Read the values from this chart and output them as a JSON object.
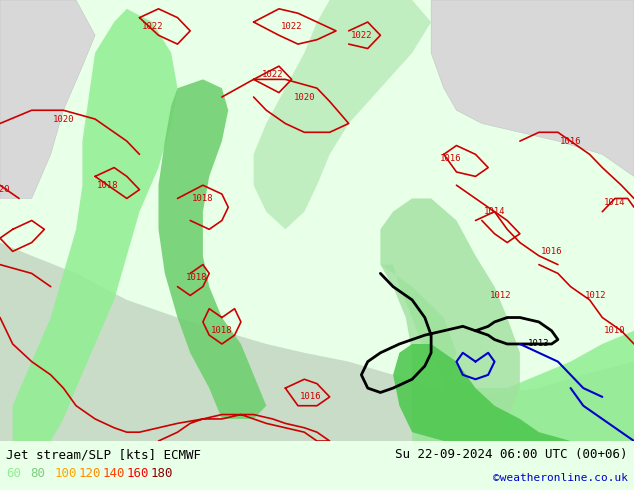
{
  "title_left": "Jet stream/SLP [kts] ECMWF",
  "title_right": "Su 22-09-2024 06:00 UTC (00+06)",
  "credit": "©weatheronline.co.uk",
  "legend_values": [
    "60",
    "80",
    "100",
    "120",
    "140",
    "160",
    "180"
  ],
  "legend_colors": [
    "#90ee90",
    "#7ccd7c",
    "#ffa500",
    "#ff8c00",
    "#ff4500",
    "#ff0000",
    "#8b0000"
  ],
  "font_family": "monospace",
  "map_bg_light_green": "#c8f0c8",
  "map_bg_mid_green": "#90ee90",
  "map_bg_dark_green": "#32cd32",
  "sea_color": "#d0e8d0",
  "land_gray": "#d8d8d8",
  "bottom_bar_color": "#e8ffe8",
  "pressure_color": "#cc0000",
  "black_contour_color": "#000000",
  "blue_contour_color": "#0000cc"
}
